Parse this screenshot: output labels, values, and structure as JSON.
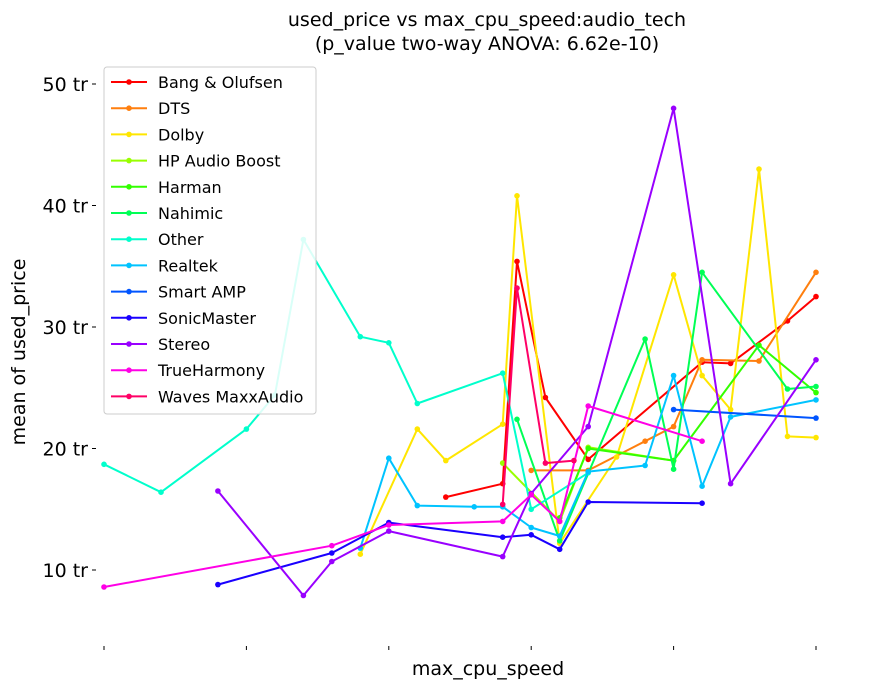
{
  "chart_data": {
    "type": "line",
    "title": "used_price vs max_cpu_speed:audio_tech",
    "subtitle": "(p_value two-way ANOVA: 6.62e-10)",
    "xlabel": "max_cpu_speed",
    "ylabel": "mean of used_price",
    "xlim": [
      1.3,
      4.1
    ],
    "ylim": [
      4,
      52
    ],
    "x_ticks": [
      1.5,
      2.0,
      2.5,
      3.0,
      3.5,
      4.0
    ],
    "x_tick_labels": [
      "",
      "",
      "",
      "",
      "",
      ""
    ],
    "y_ticks": [
      10,
      20,
      30,
      40,
      50
    ],
    "y_tick_labels": [
      "10 tr",
      "20 tr",
      "30 tr",
      "40 tr",
      "50 tr"
    ],
    "legend_position": "top-left",
    "grid": false,
    "series": [
      {
        "name": "Bang & Olufsen",
        "color": "#ff0000",
        "points": [
          [
            2.7,
            16.0
          ],
          [
            2.9,
            17.1
          ],
          [
            2.95,
            35.4
          ],
          [
            3.05,
            24.2
          ],
          [
            3.2,
            19.1
          ],
          [
            3.6,
            27.1
          ],
          [
            3.7,
            27.0
          ],
          [
            3.9,
            30.5
          ],
          [
            4.0,
            32.5
          ]
        ]
      },
      {
        "name": "DTS",
        "color": "#ff7f0e",
        "points": [
          [
            3.0,
            18.2
          ],
          [
            3.2,
            18.2
          ],
          [
            3.4,
            20.6
          ],
          [
            3.5,
            21.8
          ],
          [
            3.6,
            27.3
          ],
          [
            3.8,
            27.2
          ],
          [
            4.0,
            34.5
          ]
        ]
      },
      {
        "name": "Dolby",
        "color": "#ffe600",
        "points": [
          [
            2.4,
            11.3
          ],
          [
            2.6,
            21.6
          ],
          [
            2.7,
            19.0
          ],
          [
            2.9,
            22.0
          ],
          [
            2.95,
            40.8
          ],
          [
            3.1,
            12.2
          ],
          [
            3.3,
            19.3
          ],
          [
            3.5,
            34.3
          ],
          [
            3.6,
            26.0
          ],
          [
            3.7,
            23.2
          ],
          [
            3.8,
            43.0
          ],
          [
            3.9,
            21.0
          ],
          [
            4.0,
            20.9
          ]
        ]
      },
      {
        "name": "HP Audio Boost",
        "color": "#99ff00",
        "points": [
          [
            2.9,
            18.8
          ],
          [
            3.1,
            14.0
          ],
          [
            3.2,
            20.1
          ],
          [
            3.5,
            19.0
          ]
        ]
      },
      {
        "name": "Harman",
        "color": "#33ff00",
        "points": [
          [
            3.1,
            14.3
          ],
          [
            3.2,
            20.0
          ],
          [
            3.5,
            19.0
          ],
          [
            3.8,
            28.5
          ],
          [
            4.0,
            24.6
          ]
        ]
      },
      {
        "name": "Nahimic",
        "color": "#00ff55",
        "points": [
          [
            2.95,
            22.4
          ],
          [
            3.1,
            12.4
          ],
          [
            3.4,
            29.0
          ],
          [
            3.5,
            18.3
          ],
          [
            3.6,
            34.5
          ],
          [
            3.9,
            24.9
          ],
          [
            4.0,
            25.1
          ]
        ]
      },
      {
        "name": "Other",
        "color": "#00ffcc",
        "points": [
          [
            1.5,
            18.7
          ],
          [
            1.7,
            16.4
          ],
          [
            2.0,
            21.6
          ],
          [
            2.1,
            24.4
          ],
          [
            2.2,
            37.2
          ],
          [
            2.4,
            29.2
          ],
          [
            2.5,
            28.7
          ],
          [
            2.6,
            23.7
          ],
          [
            2.9,
            26.2
          ],
          [
            3.0,
            15.0
          ],
          [
            3.2,
            18.0
          ]
        ]
      },
      {
        "name": "Realtek",
        "color": "#00c3ff",
        "points": [
          [
            2.4,
            11.8
          ],
          [
            2.5,
            19.2
          ],
          [
            2.6,
            15.3
          ],
          [
            2.8,
            15.2
          ],
          [
            2.9,
            15.2
          ],
          [
            3.0,
            13.5
          ],
          [
            3.1,
            12.8
          ],
          [
            3.2,
            18.1
          ],
          [
            3.4,
            18.6
          ],
          [
            3.5,
            26.0
          ],
          [
            3.6,
            16.9
          ],
          [
            3.7,
            22.6
          ],
          [
            4.0,
            24.0
          ]
        ]
      },
      {
        "name": "Smart AMP",
        "color": "#0055ff",
        "points": [
          [
            3.5,
            23.2
          ],
          [
            4.0,
            22.5
          ]
        ]
      },
      {
        "name": "SonicMaster",
        "color": "#1a00ff",
        "points": [
          [
            1.9,
            8.8
          ],
          [
            2.3,
            11.4
          ],
          [
            2.5,
            13.9
          ],
          [
            2.9,
            12.7
          ],
          [
            3.0,
            12.9
          ],
          [
            3.1,
            11.7
          ],
          [
            3.2,
            15.6
          ],
          [
            3.6,
            15.5
          ]
        ]
      },
      {
        "name": "Stereo",
        "color": "#9900ff",
        "points": [
          [
            1.9,
            16.5
          ],
          [
            2.2,
            7.9
          ],
          [
            2.3,
            10.7
          ],
          [
            2.5,
            13.2
          ],
          [
            2.9,
            11.1
          ],
          [
            3.0,
            16.3
          ],
          [
            3.2,
            21.8
          ],
          [
            3.5,
            48.0
          ],
          [
            3.7,
            17.1
          ],
          [
            4.0,
            27.3
          ]
        ]
      },
      {
        "name": "TrueHarmony",
        "color": "#ff00e6",
        "points": [
          [
            1.5,
            8.6
          ],
          [
            2.3,
            12.0
          ],
          [
            2.5,
            13.7
          ],
          [
            2.9,
            14.0
          ],
          [
            3.0,
            16.2
          ],
          [
            3.1,
            14.0
          ],
          [
            3.2,
            23.5
          ],
          [
            3.6,
            20.6
          ]
        ]
      },
      {
        "name": "Waves MaxxAudio",
        "color": "#ff0066",
        "points": [
          [
            2.9,
            15.4
          ],
          [
            2.95,
            33.2
          ],
          [
            3.05,
            18.8
          ],
          [
            3.15,
            19.0
          ]
        ]
      }
    ]
  }
}
